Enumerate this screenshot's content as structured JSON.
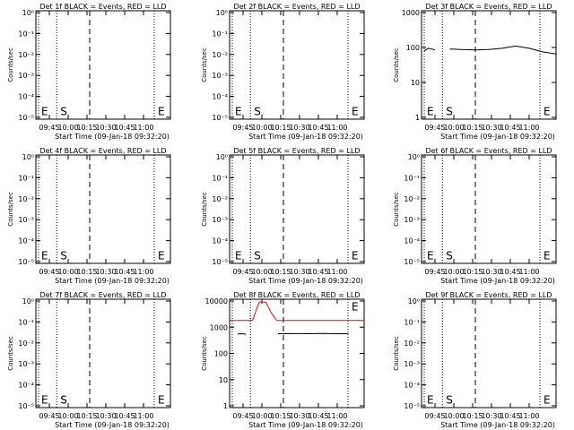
{
  "chart_data": [
    {
      "type": "line",
      "title": "Det 1f BLACK = Events, RED = LLD",
      "xlabel": "Start Time (09-Jan-18 09:32:20)",
      "ylabel": "Counts/sec",
      "x_tick_labels": [
        "09:45",
        "10:00",
        "10:15",
        "10:30",
        "10:45",
        "11:00"
      ],
      "y_scale": "log",
      "y_tick_labels": [
        "10⁰",
        "10⁻¹",
        "10⁻²",
        "10⁻³",
        "10⁻⁴",
        "10⁻⁵"
      ],
      "markers": [
        {
          "label": "E",
          "style": "dotted"
        },
        {
          "label": "S",
          "style": "dotted"
        },
        {
          "label": "",
          "style": "dashed"
        },
        {
          "label": "E",
          "style": "dotted"
        }
      ],
      "series": []
    },
    {
      "type": "line",
      "title": "Det 2f BLACK = Events, RED = LLD",
      "xlabel": "Start Time (09-Jan-18 09:32:20)",
      "ylabel": "Counts/sec",
      "x_tick_labels": [
        "09:45",
        "10:00",
        "10:15",
        "10:30",
        "10:45",
        "11:00"
      ],
      "y_scale": "log",
      "y_tick_labels": [
        "10⁰",
        "10⁻¹",
        "10⁻²",
        "10⁻³",
        "10⁻⁴",
        "10⁻⁵"
      ],
      "markers": [
        {
          "label": "E",
          "style": "dotted"
        },
        {
          "label": "S",
          "style": "dotted"
        },
        {
          "label": "",
          "style": "dashed"
        },
        {
          "label": "E",
          "style": "dotted"
        }
      ],
      "series": []
    },
    {
      "type": "line",
      "title": "Det 3f BLACK = Events, RED = LLD",
      "xlabel": "Start Time (09-Jan-18 09:32:20)",
      "ylabel": "Counts/sec",
      "x_tick_labels": [
        "09:45",
        "10:00",
        "10:15",
        "10:30",
        "10:45",
        "11:00"
      ],
      "y_scale": "log",
      "y_tick_labels": [
        "1000",
        "100",
        "10",
        "1"
      ],
      "markers": [
        {
          "label": "E",
          "style": "dotted"
        },
        {
          "label": "S",
          "style": "dotted"
        },
        {
          "label": "",
          "style": "dashed"
        },
        {
          "label": "E",
          "style": "dotted"
        }
      ],
      "series": [
        {
          "color": "#000000",
          "segments": [
            {
              "x": [
                0.02,
                0.05,
                0.08,
                0.1
              ],
              "y": [
                80,
                95,
                90,
                85
              ]
            },
            {
              "x": [
                0.21,
                0.3,
                0.4,
                0.5,
                0.6,
                0.7,
                0.8,
                0.9,
                1.0
              ],
              "y": [
                90,
                88,
                85,
                88,
                95,
                110,
                95,
                75,
                65
              ]
            }
          ]
        }
      ]
    },
    {
      "type": "line",
      "title": "Det 4f BLACK = Events, RED = LLD",
      "xlabel": "Start Time (09-Jan-18 09:32:20)",
      "ylabel": "Counts/sec",
      "x_tick_labels": [
        "09:45",
        "10:00",
        "10:15",
        "10:30",
        "10:45",
        "11:00"
      ],
      "y_scale": "log",
      "y_tick_labels": [
        "10⁰",
        "10⁻¹",
        "10⁻²",
        "10⁻³",
        "10⁻⁴",
        "10⁻⁵"
      ],
      "markers": [
        {
          "label": "E",
          "style": "dotted"
        },
        {
          "label": "S",
          "style": "dotted"
        },
        {
          "label": "",
          "style": "dashed"
        },
        {
          "label": "E",
          "style": "dotted"
        }
      ],
      "series": []
    },
    {
      "type": "line",
      "title": "Det 5f BLACK = Events, RED = LLD",
      "xlabel": "Start Time (09-Jan-18 09:32:20)",
      "ylabel": "Counts/sec",
      "x_tick_labels": [
        "09:45",
        "10:00",
        "10:15",
        "10:30",
        "10:45",
        "11:00"
      ],
      "y_scale": "log",
      "y_tick_labels": [
        "10⁰",
        "10⁻¹",
        "10⁻²",
        "10⁻³",
        "10⁻⁴",
        "10⁻⁵"
      ],
      "markers": [
        {
          "label": "E",
          "style": "dotted"
        },
        {
          "label": "S",
          "style": "dotted"
        },
        {
          "label": "",
          "style": "dashed"
        },
        {
          "label": "E",
          "style": "dotted"
        }
      ],
      "series": []
    },
    {
      "type": "line",
      "title": "Det 6f BLACK = Events, RED = LLD",
      "xlabel": "Start Time (09-Jan-18 09:32:20)",
      "ylabel": "Counts/sec",
      "x_tick_labels": [
        "09:45",
        "10:00",
        "10:15",
        "10:30",
        "10:45",
        "11:00"
      ],
      "y_scale": "log",
      "y_tick_labels": [
        "10⁰",
        "10⁻¹",
        "10⁻²",
        "10⁻³",
        "10⁻⁴",
        "10⁻⁵"
      ],
      "markers": [
        {
          "label": "E",
          "style": "dotted"
        },
        {
          "label": "S",
          "style": "dotted"
        },
        {
          "label": "",
          "style": "dashed"
        },
        {
          "label": "E",
          "style": "dotted"
        }
      ],
      "series": []
    },
    {
      "type": "line",
      "title": "Det 7f BLACK = Events, RED = LLD",
      "xlabel": "Start Time (09-Jan-18 09:32:20)",
      "ylabel": "Counts/sec",
      "x_tick_labels": [
        "09:45",
        "10:00",
        "10:15",
        "10:30",
        "10:45",
        "11:00"
      ],
      "y_scale": "log",
      "y_tick_labels": [
        "10⁰",
        "10⁻¹",
        "10⁻²",
        "10⁻³",
        "10⁻⁴",
        "10⁻⁵"
      ],
      "markers": [
        {
          "label": "E",
          "style": "dotted"
        },
        {
          "label": "S",
          "style": "dotted"
        },
        {
          "label": "",
          "style": "dashed"
        },
        {
          "label": "E",
          "style": "dotted"
        }
      ],
      "series": []
    },
    {
      "type": "line",
      "title": "Det 8f BLACK = Events, RED = LLD",
      "xlabel": "Start Time (09-Jan-18 09:32:20)",
      "ylabel": "Counts/sec",
      "x_tick_labels": [
        "09:45",
        "10:00",
        "10:15",
        "10:30",
        "10:45",
        "11:00"
      ],
      "y_scale": "log",
      "y_tick_labels": [
        "10000",
        "1000",
        "100",
        "10",
        "1"
      ],
      "markers": [
        {
          "label": "",
          "style": "dotted"
        },
        {
          "label": "",
          "style": "dotted"
        },
        {
          "label": "",
          "style": "dashed"
        },
        {
          "label": "E",
          "style": "dotted"
        }
      ],
      "series": [
        {
          "color": "#ff0000",
          "segments": [
            {
              "x": [
                0.0,
                0.1,
                0.17,
                0.22,
                0.27,
                0.31,
                0.35,
                1.0
              ],
              "y": [
                1800,
                1800,
                1800,
                9000,
                9000,
                3500,
                1800,
                1800
              ]
            }
          ]
        },
        {
          "color": "#000000",
          "segments": [
            {
              "x": [
                0.06,
                0.08,
                0.1,
                0.12
              ],
              "y": [
                550,
                560,
                560,
                540
              ]
            },
            {
              "x": [
                0.36,
                0.5,
                0.6,
                0.7,
                0.8,
                0.88
              ],
              "y": [
                560,
                570,
                565,
                575,
                560,
                570
              ]
            }
          ]
        }
      ]
    },
    {
      "type": "line",
      "title": "Det 9f BLACK = Events, RED = LLD",
      "xlabel": "Start Time (09-Jan-18 09:32:20)",
      "ylabel": "Counts/sec",
      "x_tick_labels": [
        "09:45",
        "10:00",
        "10:15",
        "10:30",
        "10:45",
        "11:00"
      ],
      "y_scale": "log",
      "y_tick_labels": [
        "10⁰",
        "10⁻¹",
        "10⁻²",
        "10⁻³",
        "10⁻⁴",
        "10⁻⁵"
      ],
      "markers": [
        {
          "label": "E",
          "style": "dotted"
        },
        {
          "label": "S",
          "style": "dotted"
        },
        {
          "label": "",
          "style": "dashed"
        },
        {
          "label": "E",
          "style": "dotted"
        }
      ],
      "series": []
    }
  ]
}
